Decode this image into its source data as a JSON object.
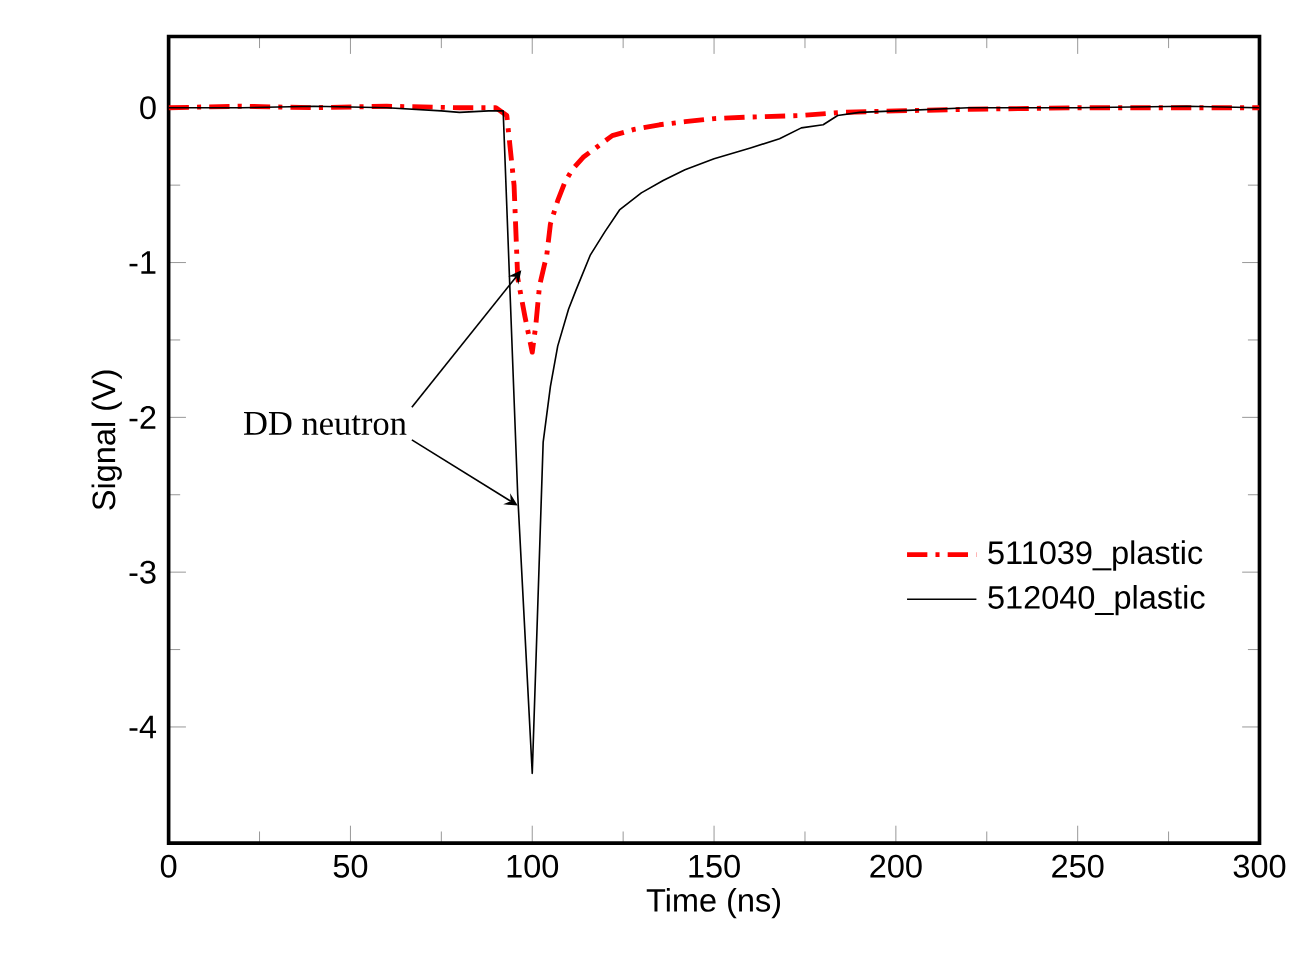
{
  "chart_data": {
    "type": "line",
    "xlabel": "Time (ns)",
    "ylabel": "Signal (V)",
    "xlim": [
      0,
      300
    ],
    "ylim": [
      -4.75,
      0.46
    ],
    "xticks": [
      0,
      50,
      100,
      150,
      200,
      250,
      300
    ],
    "yticks": [
      0,
      -1,
      -2,
      -3,
      -4
    ],
    "legend": "right",
    "grid": false,
    "marker": "none",
    "annotations": [
      {
        "text": "DD neutron",
        "x": 97,
        "y": -1.05
      }
    ],
    "series": [
      {
        "name": "511039_plastic",
        "color": "#ff0000",
        "line_style": "dashdot",
        "x": [
          0,
          20,
          40,
          60,
          80,
          90,
          93,
          95,
          96,
          98,
          100,
          101,
          102,
          104,
          105,
          107,
          109,
          111,
          114,
          118,
          122,
          128,
          135,
          142,
          150,
          160,
          174,
          185,
          200,
          220,
          250,
          280,
          300
        ],
        "values": [
          0,
          0.01,
          0,
          0.01,
          0,
          0,
          -0.05,
          -0.5,
          -1.1,
          -1.35,
          -1.58,
          -1.4,
          -1.15,
          -0.95,
          -0.75,
          -0.6,
          -0.48,
          -0.4,
          -0.32,
          -0.25,
          -0.18,
          -0.14,
          -0.11,
          -0.09,
          -0.07,
          -0.06,
          -0.05,
          -0.03,
          -0.02,
          -0.01,
          0,
          0,
          0
        ]
      },
      {
        "name": "512040_plastic",
        "color": "#000000",
        "line_style": "solid",
        "x": [
          0,
          20,
          40,
          60,
          75,
          80,
          88,
          92,
          96,
          100,
          103,
          105,
          107,
          110,
          112,
          116,
          120,
          124,
          130,
          136,
          142,
          150,
          160,
          168,
          174,
          180,
          184,
          190,
          200,
          220,
          250,
          280,
          300
        ],
        "values": [
          0,
          0,
          0.01,
          0,
          -0.02,
          -0.03,
          -0.02,
          -0.02,
          -2.5,
          -4.3,
          -2.16,
          -1.8,
          -1.54,
          -1.3,
          -1.18,
          -0.95,
          -0.8,
          -0.66,
          -0.55,
          -0.47,
          -0.4,
          -0.33,
          -0.26,
          -0.2,
          -0.13,
          -0.11,
          -0.05,
          -0.03,
          -0.02,
          0,
          0,
          0.01,
          0
        ]
      }
    ]
  }
}
